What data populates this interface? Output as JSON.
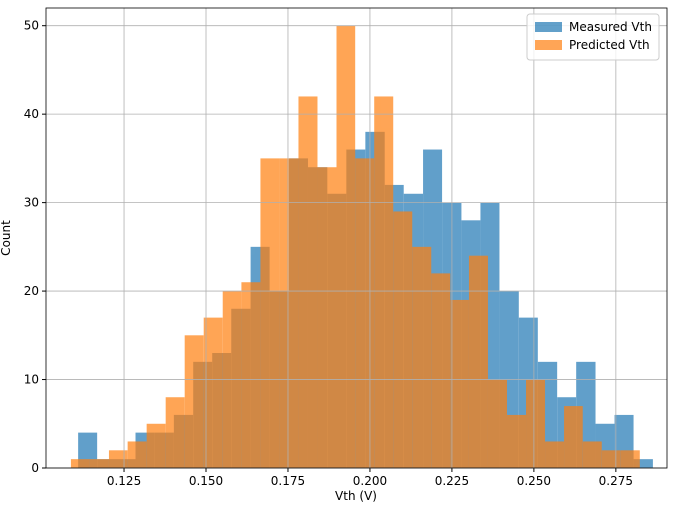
{
  "chart_data": {
    "type": "histogram",
    "xlabel": "Vth (V)",
    "ylabel": "Count",
    "xlim": [
      0.1012,
      0.2906
    ],
    "ylim": [
      0,
      52
    ],
    "xticks": [
      0.125,
      {
        "value": 0.15,
        "label": "0.150"
      },
      0.175,
      {
        "value": 0.2,
        "label": "0.200"
      },
      0.225,
      {
        "value": 0.25,
        "label": "0.250"
      },
      0.275
    ],
    "yticks": [
      0,
      10,
      20,
      30,
      40,
      50
    ],
    "grid": true,
    "legend": "upper right",
    "alpha": 0.7,
    "series": [
      {
        "name": "Measured Vth",
        "color": "#1f77b4",
        "bins": [
          0.111,
          0.1168,
          0.1227,
          0.1285,
          0.1344,
          0.1402,
          0.1461,
          0.1519,
          0.1577,
          0.1636,
          0.1694,
          0.1753,
          0.1811,
          0.187,
          0.1928,
          0.1986,
          0.2045,
          0.2103,
          0.2162,
          0.222,
          0.2279,
          0.2337,
          0.2395,
          0.2454,
          0.2512,
          0.2571,
          0.2629,
          0.2688,
          0.2746,
          0.2804,
          0.2863
        ],
        "values": [
          4,
          1,
          1,
          4,
          4,
          6,
          12,
          13,
          18,
          25,
          20,
          35,
          34,
          31,
          36,
          38,
          32,
          31,
          36,
          30,
          28,
          30,
          20,
          17,
          12,
          8,
          12,
          5,
          6,
          1
        ]
      },
      {
        "name": "Predicted Vth",
        "color": "#ff7f0e",
        "bins": [
          0.1088,
          0.1146,
          0.1204,
          0.1261,
          0.1319,
          0.1377,
          0.1435,
          0.1493,
          0.1551,
          0.1608,
          0.1666,
          0.1724,
          0.1782,
          0.184,
          0.1898,
          0.1955,
          0.2013,
          0.2071,
          0.2129,
          0.2187,
          0.2245,
          0.2302,
          0.236,
          0.2418,
          0.2476,
          0.2534,
          0.2592,
          0.2649,
          0.2707,
          0.2765,
          0.2823
        ],
        "values": [
          1,
          1,
          2,
          3,
          5,
          8,
          15,
          17,
          20,
          21,
          35,
          35,
          42,
          34,
          50,
          35,
          42,
          29,
          25,
          22,
          19,
          24,
          10,
          6,
          10,
          3,
          7,
          3,
          2,
          2
        ]
      }
    ]
  }
}
